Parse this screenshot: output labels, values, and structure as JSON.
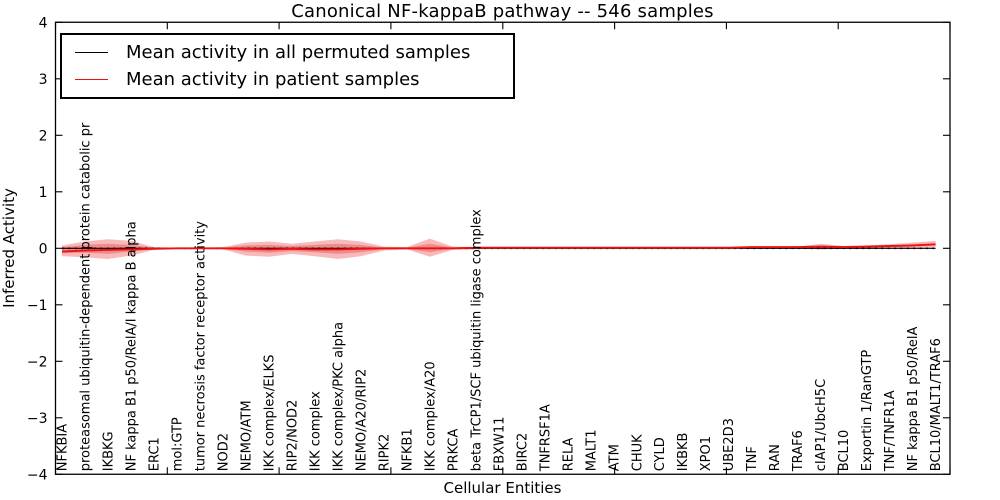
{
  "figure": {
    "background": "#ffffff"
  },
  "chart_data": {
    "type": "area",
    "title": "Canonical NF-kappaB pathway -- 546 samples",
    "xlabel": "Cellular Entities",
    "ylabel": "Inferred Activity",
    "ylim": [
      -4,
      4
    ],
    "yticks": [
      4,
      3,
      2,
      1,
      0,
      -1,
      -2,
      -3,
      -4
    ],
    "ytick_labels": [
      "4",
      "3",
      "2",
      "1",
      "0",
      "−1",
      "−2",
      "−3",
      "−4"
    ],
    "grid": false,
    "legend_position": "upper left",
    "categories": [
      "NFKBIA",
      "proteasomal ubiquitin-dependent protein catabolic pr",
      "IKBKG",
      "NF kappa B1 p50/RelA/I kappa B alpha",
      "ERC1",
      "mol:GTP",
      "tumor necrosis factor receptor activity",
      "NOD2",
      "NEMO/ATM",
      "IKK complex/ELKS",
      "RIP2/NOD2",
      "IKK complex",
      "IKK complex/PKC alpha",
      "NEMO/A20/RIP2",
      "RIPK2",
      "NFKB1",
      "IKK complex/A20",
      "PRKCA",
      "beta TrCP1/SCF ubiquitin ligase complex",
      "FBXW11",
      "BIRC2",
      "TNFRSF1A",
      "RELA",
      "MALT1",
      "ATM",
      "CHUK",
      "CYLD",
      "IKBKB",
      "XPO1",
      "UBE2D3",
      "TNF",
      "RAN",
      "TRAF6",
      "cIAP1/UbcH5C",
      "BCL10",
      "Exportin 1/RanGTP",
      "TNF/TNFR1A",
      "NF kappa B1 p50/RelA",
      "BCL10/MALT1/TRAF6"
    ],
    "series": [
      {
        "name": "Mean activity in all permuted samples",
        "color": "#000000",
        "style": "solid",
        "values": [
          0,
          0,
          0,
          0,
          0,
          0,
          0,
          0,
          0,
          0,
          0,
          0,
          0,
          0,
          0,
          0,
          0,
          0,
          0,
          0,
          0,
          0,
          0,
          0,
          0,
          0,
          0,
          0,
          0,
          0,
          0,
          0,
          0,
          0,
          0,
          0,
          0,
          0,
          0
        ]
      },
      {
        "name": "Mean activity in patient samples",
        "color": "#ee1111",
        "style": "solid",
        "values": [
          -0.06,
          -0.04,
          -0.03,
          -0.02,
          -0.01,
          0,
          0,
          0,
          -0.01,
          -0.02,
          -0.01,
          -0.02,
          -0.02,
          -0.01,
          0,
          0,
          0,
          0,
          0.01,
          0.01,
          0.01,
          0.01,
          0.01,
          0.01,
          0.01,
          0.01,
          0.01,
          0.01,
          0.01,
          0.01,
          0.02,
          0.02,
          0.02,
          0.03,
          0.02,
          0.03,
          0.04,
          0.05,
          0.07
        ]
      }
    ],
    "bands": {
      "color": "#e41a1c",
      "opacity": 0.3,
      "outer": {
        "upper": [
          0.05,
          0.12,
          0.16,
          0.13,
          0.02,
          0.01,
          0.01,
          0.02,
          0.1,
          0.12,
          0.08,
          0.12,
          0.16,
          0.12,
          0.03,
          0.02,
          0.17,
          0.03,
          0.02,
          0.01,
          0.01,
          0.01,
          0.01,
          0.01,
          0.01,
          0.01,
          0.01,
          0.01,
          0.01,
          0.01,
          0.02,
          0.02,
          0.03,
          0.08,
          0.04,
          0.05,
          0.07,
          0.1,
          0.13
        ],
        "lower": [
          -0.14,
          -0.16,
          -0.19,
          -0.13,
          -0.03,
          -0.01,
          -0.01,
          -0.02,
          -0.13,
          -0.15,
          -0.1,
          -0.14,
          -0.19,
          -0.14,
          -0.04,
          -0.02,
          -0.15,
          -0.03,
          -0.02,
          -0.01,
          -0.01,
          -0.01,
          -0.01,
          -0.01,
          -0.01,
          -0.01,
          -0.01,
          -0.01,
          -0.01,
          -0.01,
          -0.01,
          -0.01,
          -0.01,
          -0.02,
          -0.01,
          0.0,
          0.0,
          0.01,
          0.02
        ]
      },
      "inner": {
        "upper": [
          0.02,
          0.06,
          0.08,
          0.06,
          0.01,
          0,
          0,
          0.01,
          0.05,
          0.06,
          0.04,
          0.06,
          0.08,
          0.06,
          0.01,
          0.01,
          0.08,
          0.01,
          0.01,
          0,
          0,
          0,
          0,
          0,
          0,
          0,
          0,
          0,
          0,
          0,
          0.01,
          0.01,
          0.02,
          0.04,
          0.02,
          0.03,
          0.04,
          0.06,
          0.09
        ],
        "lower": [
          -0.09,
          -0.08,
          -0.1,
          -0.06,
          -0.01,
          0,
          0,
          -0.01,
          -0.06,
          -0.08,
          -0.05,
          -0.07,
          -0.1,
          -0.07,
          -0.02,
          -0.01,
          -0.07,
          -0.01,
          -0.01,
          0,
          0,
          0,
          0,
          0,
          0,
          0,
          0,
          0,
          0,
          0,
          0,
          0,
          0,
          -0.01,
          0,
          0.01,
          0.02,
          0.03,
          0.05
        ]
      }
    },
    "zero_line": {
      "y": 0,
      "style": "dotted",
      "color": "#000000"
    }
  }
}
